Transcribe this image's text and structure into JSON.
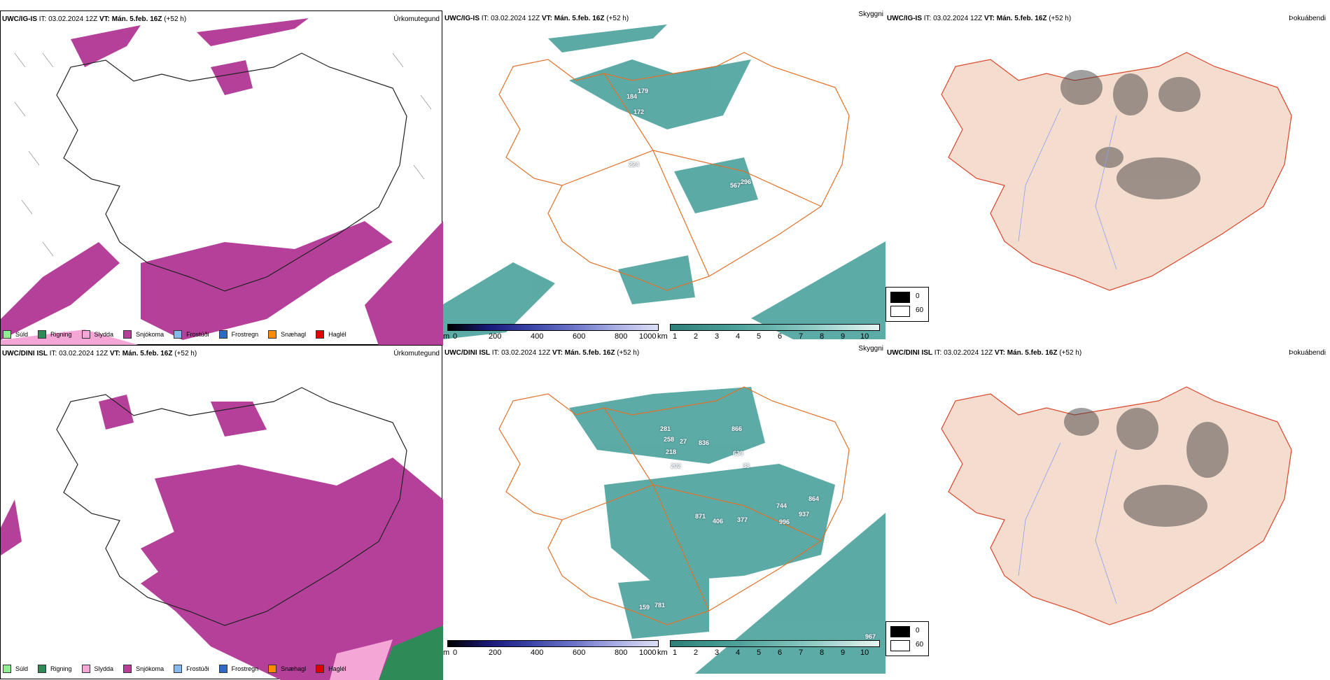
{
  "rows": [
    {
      "model": "UWC/IG-IS",
      "it": "IT: 03.02.2024 12Z",
      "vt_label": "VT:",
      "vt": "Mán. 5.feb. 16Z",
      "lead": "(+52 h)"
    },
    {
      "model": "UWC/DINI ISL",
      "it": "IT: 03.02.2024 12Z",
      "vt_label": "VT:",
      "vt": "Mán. 5.feb. 16Z",
      "lead": "(+52 h)"
    }
  ],
  "titles": {
    "precip": "Úrkomutegund",
    "visibility": "Skyggni",
    "fog": "Þokuábendi"
  },
  "precip_legend": [
    {
      "label": "Súld",
      "color": "#90ee90"
    },
    {
      "label": "Rigning",
      "color": "#2e8b57"
    },
    {
      "label": "Slydda",
      "color": "#f4a6d7"
    },
    {
      "label": "Snjókoma",
      "color": "#b5409a"
    },
    {
      "label": "Frostúði",
      "color": "#87b8ee"
    },
    {
      "label": "Frostregn",
      "color": "#2b6cc4"
    },
    {
      "label": "Snæhagl",
      "color": "#ff8c00"
    },
    {
      "label": "Haglél",
      "color": "#e00000"
    }
  ],
  "ceiling_scale": {
    "unit": "m",
    "ticks": [
      "0",
      "200",
      "400",
      "600",
      "800",
      "1000"
    ]
  },
  "visibility_scale": {
    "unit": "km",
    "ticks": [
      "1",
      "2",
      "3",
      "4",
      "5",
      "6",
      "7",
      "8",
      "9",
      "10"
    ]
  },
  "fog_scale": {
    "ticks": [
      "0",
      "60"
    ]
  },
  "ceiling_numbers_top": [
    "184",
    "179",
    "172",
    "224",
    "567",
    "296"
  ],
  "ceiling_numbers_bottom": [
    "281",
    "258",
    "27",
    "218",
    "202",
    "836",
    "866",
    "639",
    "38",
    "871",
    "406",
    "377",
    "744",
    "937",
    "864",
    "996",
    "159",
    "781",
    "967"
  ],
  "colors": {
    "snow": "#b5409a",
    "sleet": "#f4a6d7",
    "teal": "#3f9c96",
    "road": "#e0702a",
    "fog_land": "#f4ddcf"
  }
}
